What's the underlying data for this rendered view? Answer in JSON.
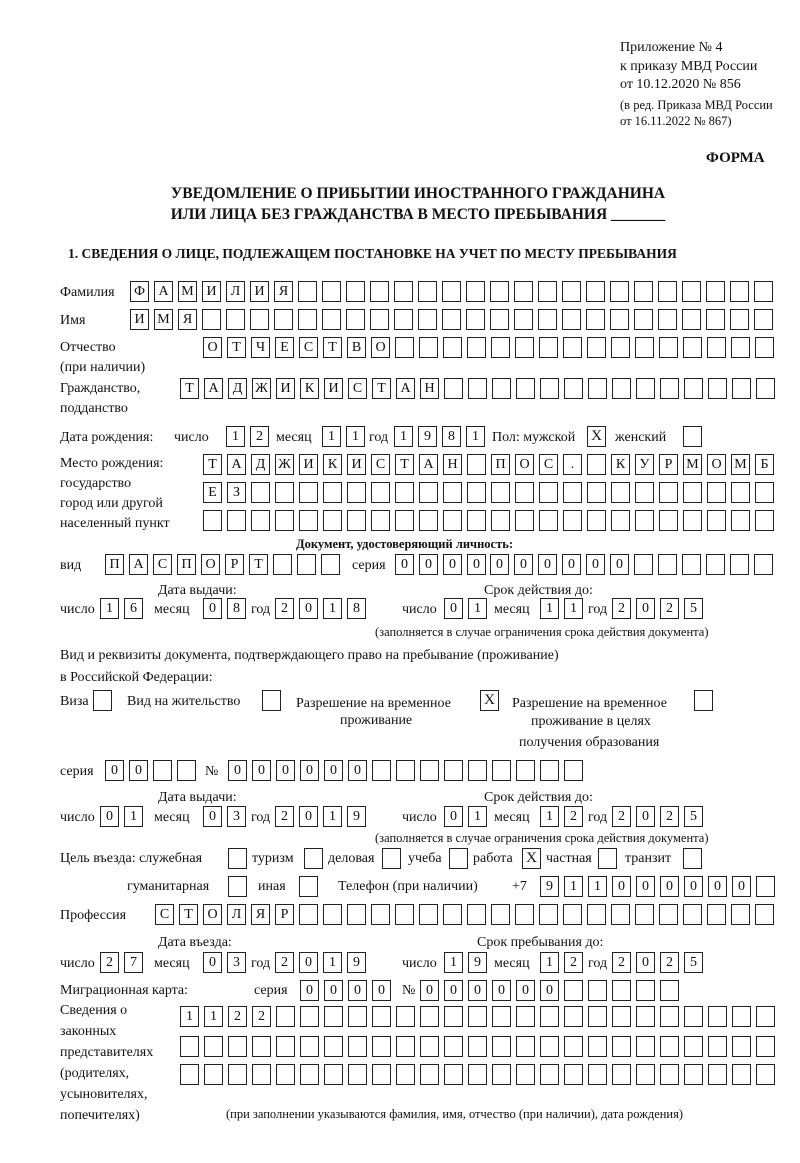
{
  "header": {
    "appendix": "Приложение № 4",
    "order": "к приказу МВД России",
    "order_date": "от 10.12.2020 № 856",
    "edition1": "(в ред. Приказа МВД России",
    "edition2": "от 16.11.2022 № 867)",
    "form": "ФОРМА",
    "title1": "УВЕДОМЛЕНИЕ О ПРИБЫТИИ ИНОСТРАННОГО ГРАЖДАНИНА",
    "title2": "ИЛИ ЛИЦА БЕЗ ГРАЖДАНСТВА В МЕСТО ПРЕБЫВАНИЯ _______",
    "section1": "1. СВЕДЕНИЯ О ЛИЦЕ, ПОДЛЕЖАЩЕМ ПОСТАНОВКЕ НА УЧЕТ ПО МЕСТУ ПРЕБЫВАНИЯ"
  },
  "labels": {
    "surname": "Фамилия",
    "name": "Имя",
    "patronymic1": "Отчество",
    "patronymic2": "(при наличии)",
    "citizenship1": "Гражданство,",
    "citizenship2": "подданство",
    "birth_date": "Дата рождения:",
    "day": "число",
    "month": "месяц",
    "year": "год",
    "sex_male": "Пол: мужской",
    "sex_female": "женский",
    "birth_place1": "Место рождения:",
    "birth_place2": "государство",
    "birth_place3": "город или другой",
    "birth_place4": "населенный пункт",
    "id_doc": "Документ, удостоверяющий личность:",
    "kind": "вид",
    "series": "серия",
    "number": "№",
    "issue_date": "Дата выдачи:",
    "valid_until": "Срок действия до:",
    "validity_note": "(заполняется в случае ограничения срока действия документа)",
    "residence_doc1": "Вид и реквизиты документа, подтверждающего право на пребывание (проживание)",
    "residence_doc2": "в Российской Федерации:",
    "visa": "Виза",
    "residence_permit": "Вид на жительство",
    "temp_residence1": "Разрешение на временное",
    "temp_residence2": "проживание",
    "temp_edu1": "Разрешение на временное",
    "temp_edu2": "проживание в целях",
    "temp_edu3": "получения образования",
    "purpose": "Цель въезда: служебная",
    "tourism": "туризм",
    "business": "деловая",
    "study": "учеба",
    "work": "работа",
    "private": "частная",
    "transit": "транзит",
    "humanitarian": "гуманитарная",
    "other": "иная",
    "phone": "Телефон (при наличии)",
    "phone_prefix": "+7",
    "profession": "Профессия",
    "entry_date": "Дата въезда:",
    "stay_until": "Срок пребывания до:",
    "migration_card": "Миграционная карта:",
    "reps1": "Сведения о",
    "reps2": "законных",
    "reps3": "представителях",
    "reps4": "(родителях,",
    "reps5": "усыновителях,",
    "reps6": "попечителях)",
    "reps_note": "(при заполнении указываются фамилия, имя, отчество (при наличии), дата рождения)"
  },
  "fields": {
    "surname": "ФАМИЛИЯ",
    "name": "ИМЯ",
    "patronymic": "ОТЧЕСТВО",
    "citizenship": "ТАДЖИКИСТАН",
    "birth_day": "12",
    "birth_month": "11",
    "birth_year": "1981",
    "birth_place_1": "ТАДЖИКИСТАН ПОС. КУРМОМБ",
    "birth_place_2": "ЕЗ",
    "birth_place_3": "",
    "id_kind": "ПАСПОРТ",
    "id_series": "0000",
    "id_number": "000000",
    "id_issue_day": "16",
    "id_issue_month": "08",
    "id_issue_year": "2018",
    "id_valid_day": "01",
    "id_valid_month": "11",
    "id_valid_year": "2025",
    "res_series": "00",
    "res_number": "000000",
    "res_issue_day": "01",
    "res_issue_month": "03",
    "res_issue_year": "2019",
    "res_valid_day": "01",
    "res_valid_month": "12",
    "res_valid_year": "2025",
    "phone": "911000000",
    "profession": "СТОЛЯР",
    "entry_day": "27",
    "entry_month": "03",
    "entry_year": "2019",
    "stay_day": "19",
    "stay_month": "12",
    "stay_year": "2025",
    "mig_series": "0000",
    "mig_number": "000000",
    "reps_1": "1122",
    "reps_2": "",
    "reps_3": ""
  },
  "checkboxes": {
    "sex_male": "X",
    "sex_female": "",
    "visa": "",
    "residence_permit": "",
    "temp_residence": "X",
    "temp_edu": "",
    "purpose_official": "",
    "purpose_tourism": "",
    "purpose_business": "",
    "purpose_study": "",
    "purpose_work": "X",
    "purpose_private": "",
    "purpose_transit": "",
    "purpose_humanitarian": "",
    "purpose_other": ""
  }
}
